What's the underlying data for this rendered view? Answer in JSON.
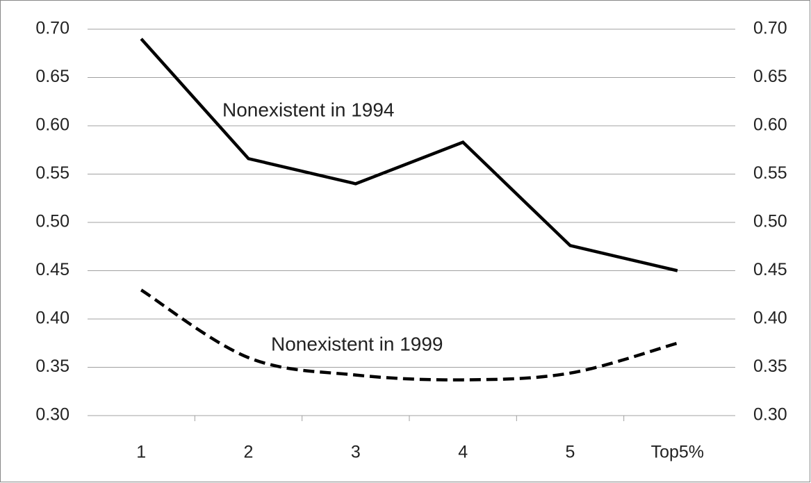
{
  "chart_data": {
    "type": "line",
    "categories": [
      "1",
      "2",
      "3",
      "4",
      "5",
      "Top5%"
    ],
    "series": [
      {
        "name": "Nonexistent in 1994",
        "color": "#000000",
        "dash": "solid",
        "values": [
          0.69,
          0.566,
          0.54,
          0.583,
          0.476,
          0.45
        ]
      },
      {
        "name": "Nonexistent in 1999",
        "color": "#000000",
        "dash": "dashed",
        "smooth": true,
        "values": [
          0.43,
          0.36,
          0.342,
          0.337,
          0.344,
          0.375
        ]
      }
    ],
    "ylim": [
      0.3,
      0.7
    ],
    "yticks": [
      {
        "value": 0.3,
        "label": "0.30"
      },
      0.35,
      {
        "value": 0.4,
        "label": "0.40"
      },
      0.45,
      {
        "value": 0.5,
        "label": "0.50"
      },
      0.55,
      {
        "value": 0.6,
        "label": "0.60"
      },
      0.65,
      {
        "value": 0.7,
        "label": "0.70"
      }
    ],
    "y2lim": [
      0.3,
      0.7
    ],
    "y2ticks": [
      {
        "value": 0.3,
        "label": "0.30"
      },
      0.35,
      {
        "value": 0.4,
        "label": "0.40"
      },
      0.45,
      {
        "value": 0.5,
        "label": "0.50"
      },
      0.55,
      {
        "value": 0.6,
        "label": "0.60"
      },
      0.65,
      {
        "value": 0.7,
        "label": "0.70"
      }
    ],
    "grid": true
  }
}
